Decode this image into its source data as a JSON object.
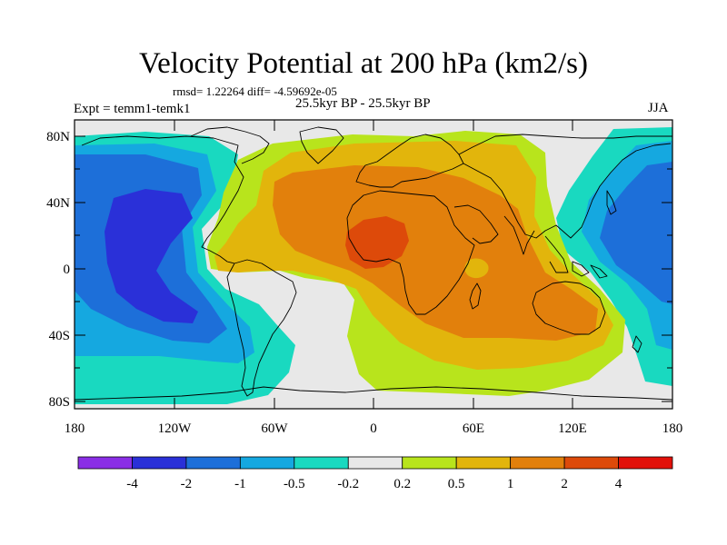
{
  "title": "Velocity Potential at 200 hPa (km2/s)",
  "stats_line": "rmsd= 1.22264 diff= -4.59692e-05",
  "period_line": "25.5kyr BP - 25.5kyr BP",
  "experiment_label": "Expt = temm1-temk1",
  "season_label": "JJA",
  "axes": {
    "y_tick_labels": [
      "80N",
      "40N",
      "0",
      "40S",
      "80S"
    ],
    "x_tick_labels": [
      "180",
      "120W",
      "60W",
      "0",
      "60E",
      "120E",
      "180"
    ]
  },
  "colorbar": {
    "labels": [
      "-4",
      "-2",
      "-1",
      "-0.5",
      "-0.2",
      "0.2",
      "0.5",
      "1",
      "2",
      "4"
    ],
    "colors": [
      "#8a2ee6",
      "#2a30d8",
      "#1d6fd9",
      "#15a8e0",
      "#19d9c0",
      "#e8e8e8",
      "#b8e41c",
      "#e2b50c",
      "#e2800c",
      "#dd4a0a",
      "#e2110a"
    ]
  }
}
